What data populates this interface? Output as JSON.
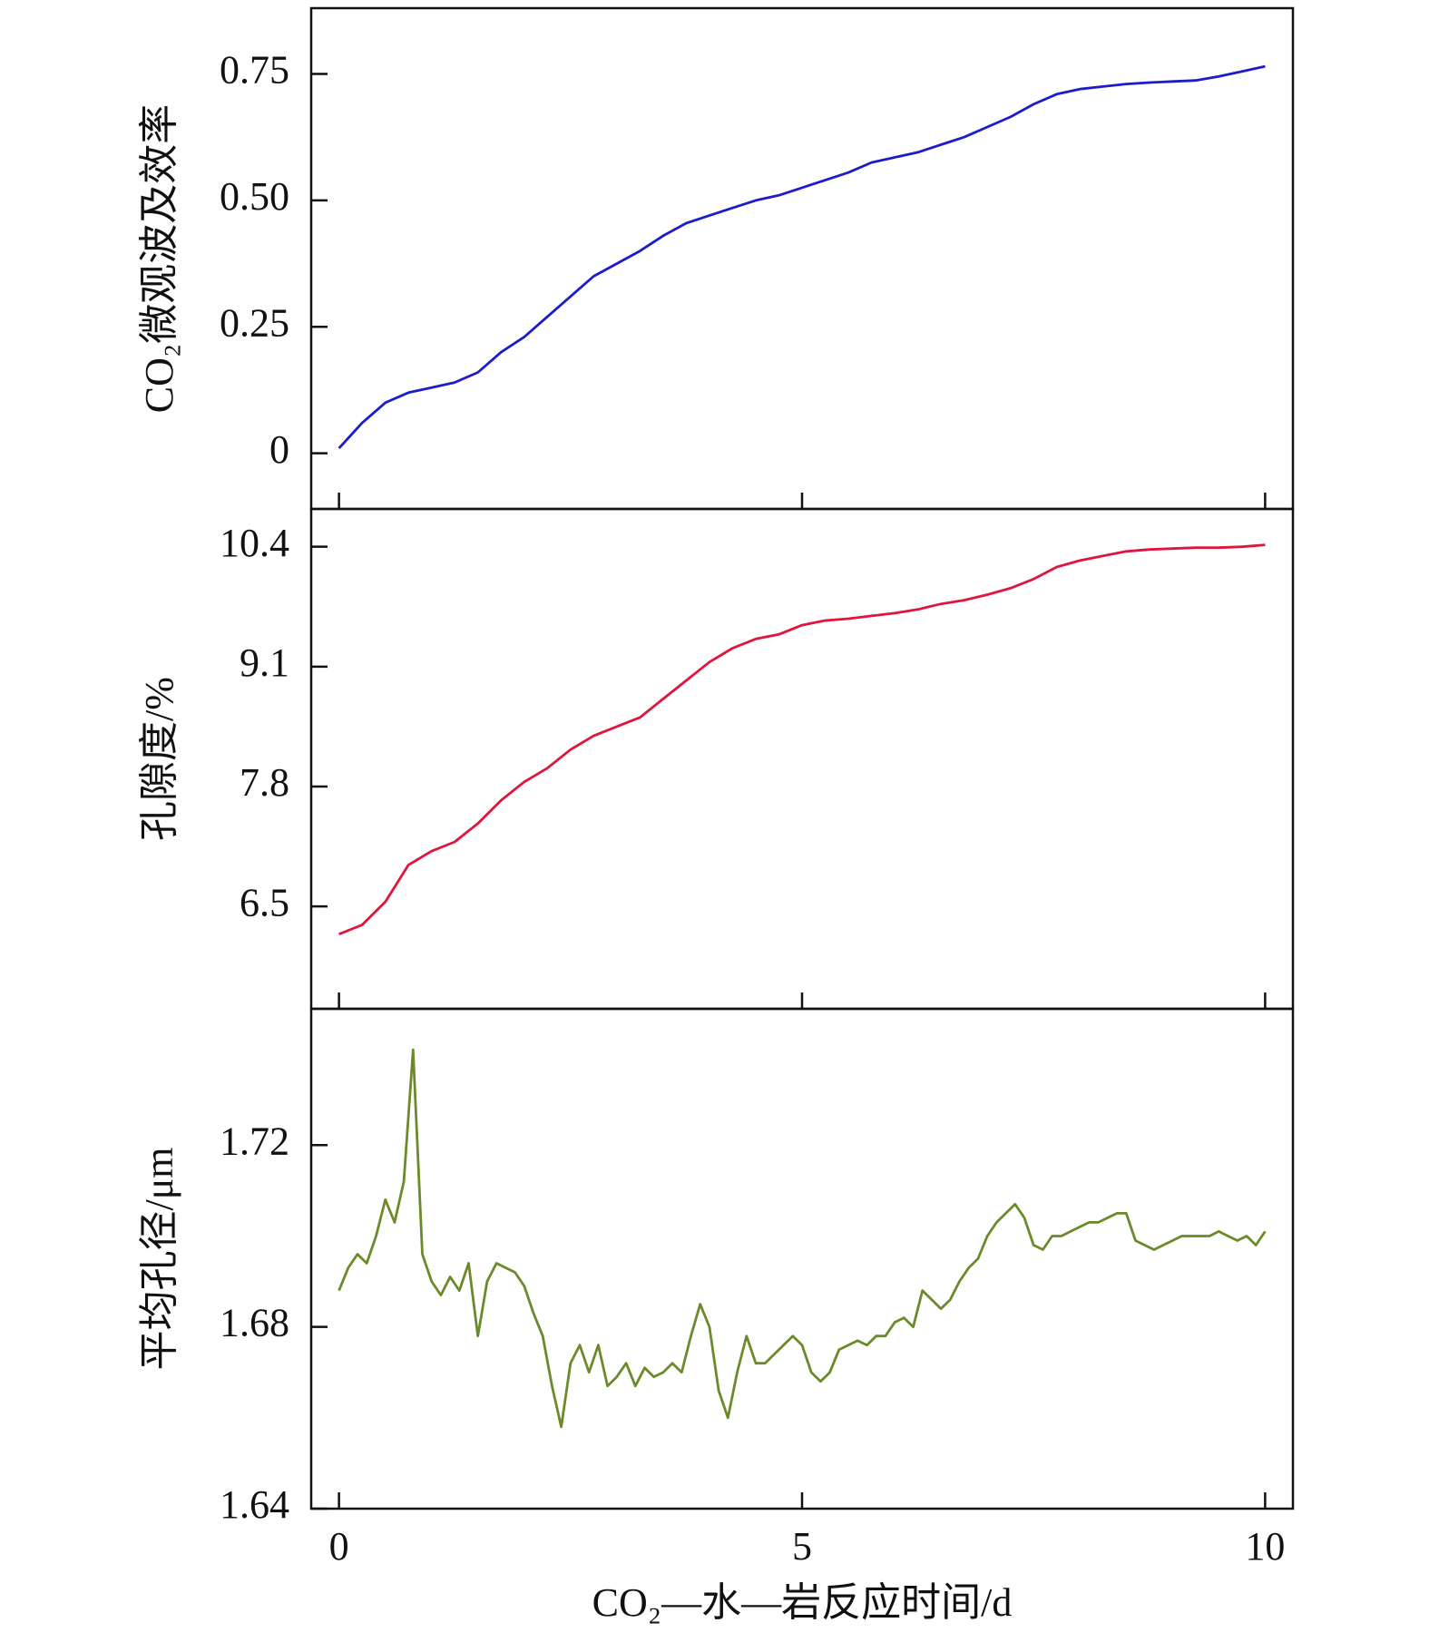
{
  "chart_data": [
    {
      "type": "line",
      "y_label": "CO₂微观波及效率",
      "xlim": [
        -0.3,
        10.3
      ],
      "xticks": [
        0,
        5,
        10
      ],
      "ylim": [
        -0.11,
        0.88
      ],
      "yticks": [
        0,
        0.25,
        {
          "value": 0.5,
          "label": "0.50"
        },
        0.75
      ],
      "x": [
        0,
        0.25,
        0.5,
        0.75,
        1,
        1.25,
        1.5,
        1.75,
        2,
        2.25,
        2.5,
        2.75,
        3,
        3.25,
        3.5,
        3.75,
        4,
        4.25,
        4.5,
        4.75,
        5,
        5.25,
        5.5,
        5.75,
        6,
        6.25,
        6.5,
        6.75,
        7,
        7.25,
        7.5,
        7.75,
        8,
        8.25,
        8.5,
        8.75,
        9,
        9.25,
        9.5,
        9.75,
        10
      ],
      "color": "#1c1ccc",
      "values": [
        0.01,
        0.06,
        0.1,
        0.12,
        0.13,
        0.14,
        0.16,
        0.2,
        0.23,
        0.27,
        0.31,
        0.35,
        0.375,
        0.4,
        0.43,
        0.455,
        0.47,
        0.485,
        0.5,
        0.51,
        0.525,
        0.54,
        0.555,
        0.575,
        0.585,
        0.595,
        0.61,
        0.625,
        0.645,
        0.665,
        0.69,
        0.71,
        0.72,
        0.725,
        0.73,
        0.733,
        0.735,
        0.737,
        0.745,
        0.755,
        0.765
      ]
    },
    {
      "type": "line",
      "y_label": "孔隙度/%",
      "xlim": [
        -0.3,
        10.3
      ],
      "xticks": [
        0,
        5,
        10
      ],
      "ylim": [
        5.39,
        10.81
      ],
      "yticks": [
        6.5,
        7.8,
        9.1,
        10.4
      ],
      "x": [
        0,
        0.25,
        0.5,
        0.75,
        1,
        1.25,
        1.5,
        1.75,
        2,
        2.25,
        2.5,
        2.75,
        3,
        3.25,
        3.5,
        3.75,
        4,
        4.25,
        4.5,
        4.75,
        5,
        5.25,
        5.5,
        5.75,
        6,
        6.25,
        6.5,
        6.75,
        7,
        7.25,
        7.5,
        7.75,
        8,
        8.25,
        8.5,
        8.75,
        9,
        9.25,
        9.5,
        9.75,
        10
      ],
      "color": "#e0143c",
      "values": [
        6.2,
        6.3,
        6.55,
        6.95,
        7.1,
        7.2,
        7.4,
        7.65,
        7.85,
        8.0,
        8.2,
        8.35,
        8.45,
        8.55,
        8.75,
        8.95,
        9.15,
        9.3,
        9.4,
        9.45,
        9.55,
        9.6,
        9.62,
        9.65,
        9.68,
        9.72,
        9.78,
        9.82,
        9.88,
        9.95,
        10.05,
        10.18,
        10.25,
        10.3,
        10.35,
        10.37,
        10.38,
        10.39,
        10.39,
        10.4,
        10.42
      ]
    },
    {
      "type": "line",
      "y_label": "平均孔径/μm",
      "x_label": "CO₂—水—岩反应时间/d",
      "xlim": [
        -0.3,
        10.3
      ],
      "xticks": [
        0,
        5,
        10
      ],
      "ylim": [
        1.64,
        1.75
      ],
      "yticks": [
        1.64,
        1.68,
        1.72
      ],
      "x": [
        0,
        0.1,
        0.2,
        0.3,
        0.4,
        0.5,
        0.6,
        0.7,
        0.8,
        0.9,
        1,
        1.1,
        1.2,
        1.3,
        1.4,
        1.5,
        1.6,
        1.7,
        1.8,
        1.9,
        2,
        2.1,
        2.2,
        2.3,
        2.4,
        2.5,
        2.6,
        2.7,
        2.8,
        2.9,
        3,
        3.1,
        3.2,
        3.3,
        3.4,
        3.5,
        3.6,
        3.7,
        3.8,
        3.9,
        4,
        4.1,
        4.2,
        4.3,
        4.4,
        4.5,
        4.6,
        4.7,
        4.8,
        4.9,
        5,
        5.1,
        5.2,
        5.3,
        5.4,
        5.5,
        5.6,
        5.7,
        5.8,
        5.9,
        6,
        6.1,
        6.2,
        6.3,
        6.4,
        6.5,
        6.6,
        6.7,
        6.8,
        6.9,
        7,
        7.1,
        7.2,
        7.3,
        7.4,
        7.5,
        7.6,
        7.7,
        7.8,
        7.9,
        8,
        8.1,
        8.2,
        8.3,
        8.4,
        8.5,
        8.6,
        8.7,
        8.8,
        8.9,
        9,
        9.1,
        9.2,
        9.3,
        9.4,
        9.5,
        9.6,
        9.7,
        9.8,
        9.9,
        10
      ],
      "color": "#6b8a2a",
      "values": [
        1.688,
        1.693,
        1.696,
        1.694,
        1.7,
        1.708,
        1.703,
        1.712,
        1.741,
        1.696,
        1.69,
        1.687,
        1.691,
        1.688,
        1.694,
        1.678,
        1.69,
        1.694,
        1.693,
        1.692,
        1.689,
        1.683,
        1.678,
        1.667,
        1.658,
        1.672,
        1.676,
        1.67,
        1.676,
        1.667,
        1.669,
        1.672,
        1.667,
        1.671,
        1.669,
        1.67,
        1.672,
        1.67,
        1.678,
        1.685,
        1.68,
        1.666,
        1.66,
        1.67,
        1.678,
        1.672,
        1.672,
        1.674,
        1.676,
        1.678,
        1.676,
        1.67,
        1.668,
        1.67,
        1.675,
        1.676,
        1.677,
        1.676,
        1.678,
        1.678,
        1.681,
        1.682,
        1.68,
        1.688,
        1.686,
        1.684,
        1.686,
        1.69,
        1.693,
        1.695,
        1.7,
        1.703,
        1.705,
        1.707,
        1.704,
        1.698,
        1.697,
        1.7,
        1.7,
        1.701,
        1.702,
        1.703,
        1.703,
        1.704,
        1.705,
        1.705,
        1.699,
        1.698,
        1.697,
        1.698,
        1.699,
        1.7,
        1.7,
        1.7,
        1.7,
        1.701,
        1.7,
        1.699,
        1.7,
        1.698,
        1.701
      ]
    }
  ]
}
